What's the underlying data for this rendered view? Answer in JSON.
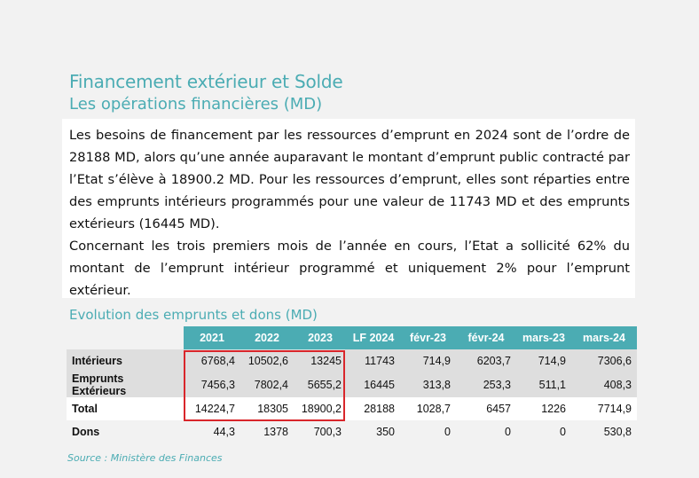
{
  "header": {
    "title": "Financement extérieur et Solde",
    "subtitle": "Les opérations financières (MD)"
  },
  "body_text": {
    "paragraph1": "Les besoins de financement par les ressources d’emprunt en 2024 sont de l’ordre de 28188 MD, alors qu’une année auparavant le montant d’emprunt public contracté par l’Etat s’élève à 18900.2 MD. Pour les ressources d’emprunt, elles sont réparties entre des emprunts intérieurs programmés pour une valeur de 11743 MD et des emprunts extérieurs (16445 MD).",
    "paragraph2": "Concernant les trois premiers mois de l’année en cours, l’Etat a sollicité 62% du montant de l’emprunt intérieur programmé et uniquement 2% pour l’emprunt extérieur."
  },
  "table": {
    "title": "Evolution des emprunts et dons (MD)",
    "columns": [
      "2021",
      "2022",
      "2023",
      "LF 2024",
      "févr-23",
      "févr-24",
      "mars-23",
      "mars-24"
    ],
    "rows": [
      {
        "label": "Intérieurs",
        "values": [
          "6768,4",
          "10502,6",
          "13245",
          "11743",
          "714,9",
          "6203,7",
          "714,9",
          "7306,6"
        ]
      },
      {
        "label": "Emprunts Extérieurs",
        "values": [
          "7456,3",
          "7802,4",
          "5655,2",
          "16445",
          "313,8",
          "253,3",
          "511,1",
          "408,3"
        ]
      },
      {
        "label": "Total",
        "values": [
          "14224,7",
          "18305",
          "18900,2",
          "28188",
          "1028,7",
          "6457",
          "1226",
          "7714,9"
        ]
      },
      {
        "label": "Dons",
        "values": [
          "44,3",
          "1378",
          "700,3",
          "350",
          "0",
          "0",
          "0",
          "530,8"
        ]
      }
    ]
  },
  "source": "Source : Ministère des Finances",
  "colors": {
    "accent": "#4bacb3",
    "highlight": "#d9262b",
    "row_shade": "#dedede"
  }
}
